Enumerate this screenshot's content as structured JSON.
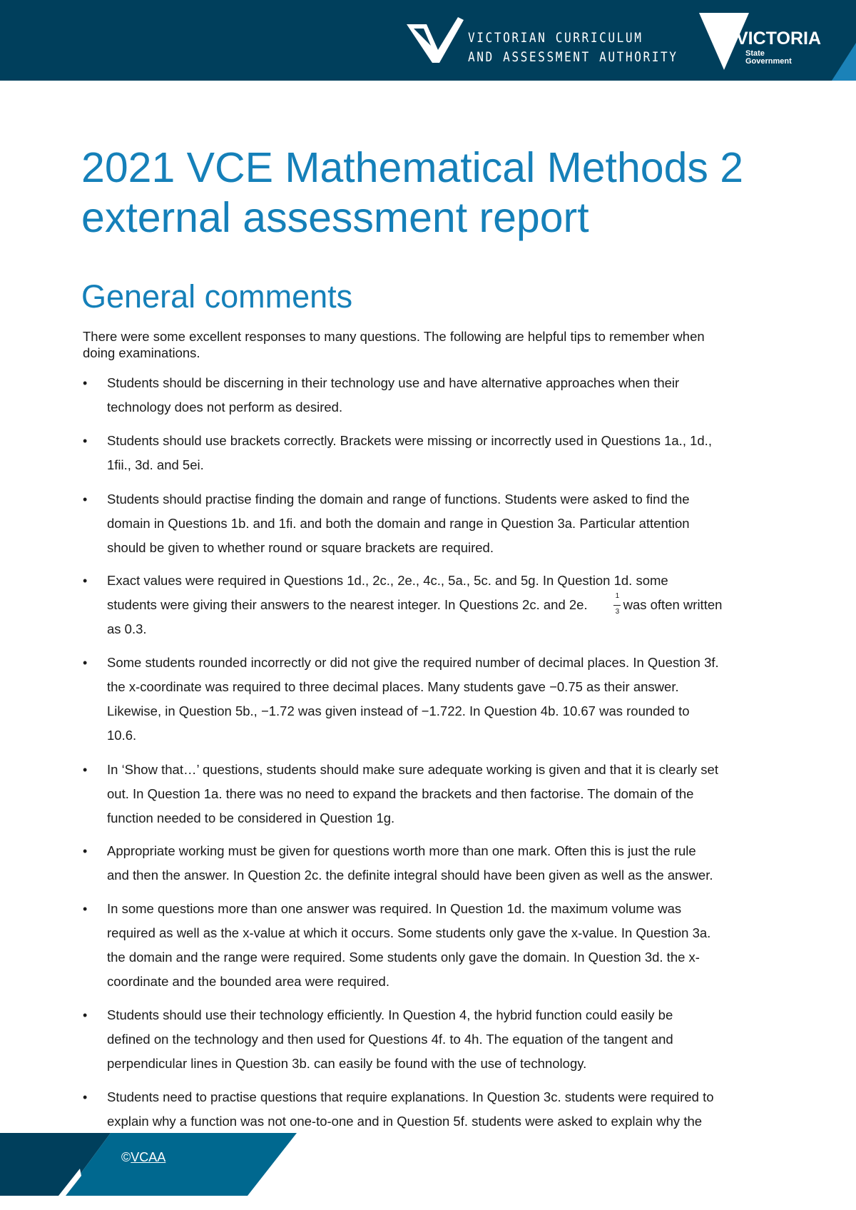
{
  "header": {
    "org_name_line1": "VICTORIAN CURRICULUM",
    "org_name_line2": "AND ASSESSMENT AUTHORITY",
    "gov_logo_word": "VICTORIA",
    "gov_logo_sub1": "State",
    "gov_logo_sub2": "Government",
    "colors": {
      "navy": "#003f5c",
      "accent": "#1b82b8"
    }
  },
  "title_line1": "2021 VCE Mathematical Methods 2",
  "title_line2": "external assessment report",
  "section_heading": "General comments",
  "intro_line1": "There were some excellent responses to many questions. The following are helpful tips to remember when",
  "intro_line2": "doing examinations.",
  "bullets": [
    {
      "lines": [
        "Students should be discerning in their technology use and have alternative approaches when their",
        "technology does not perform as desired."
      ]
    },
    {
      "lines": [
        "Students should use brackets correctly. Brackets were missing or incorrectly used in Questions 1a., 1d.,",
        "1fii., 3d. and 5ei."
      ]
    },
    {
      "lines": [
        "Students should practise finding the domain and range of functions. Students were asked to find the",
        "domain in Questions 1b. and 1fi. and both the domain and range in Question 3a. Particular attention",
        "should be given to whether round or square brackets are required."
      ]
    },
    {
      "lines": [
        "Exact values were required in Questions 1d., 2c., 2e., 4c., 5a., 5c. and 5g. In Question 1d. some",
        "students were giving their answers to the nearest integer. In Questions 2c. and 2e.",
        "as 0.3."
      ],
      "fraction_numerator": "1",
      "fraction_denominator": "3",
      "after_fraction": "was often written"
    },
    {
      "lines": [
        "Some students rounded incorrectly or did not give the required number of decimal places. In Question 3f.",
        "the x-coordinate was required to three decimal places. Many students gave −0.75 as their answer.",
        "Likewise, in Question 5b., −1.72 was given instead of −1.722. In Question 4b. 10.67 was rounded to",
        "10.6."
      ]
    },
    {
      "lines": [
        "In ‘Show that…’ questions, students should make sure adequate working is given and that it is clearly set",
        "out. In Question 1a. there was no need to expand the brackets and then factorise. The domain of the",
        "function needed to be considered in Question 1g."
      ]
    },
    {
      "lines": [
        "Appropriate working must be given for questions worth more than one mark. Often this is just the rule",
        "and then the answer. In Question 2c. the definite integral should have been given as well as the answer."
      ]
    },
    {
      "lines": [
        "In some questions more than one answer was required. In Question 1d. the maximum volume was",
        "required as well as the x-value at which it occurs. Some students only gave the x-value. In Question 3a.",
        "the domain and the range were required. Some students only gave the domain. In Question 3d. the x-",
        "coordinate and the bounded area were required."
      ]
    },
    {
      "lines": [
        "Students should use their technology efficiently. In Question 4, the hybrid function could easily be",
        "defined on the technology and then used for Questions 4f. to 4h. The equation of the tangent and",
        "perpendicular lines in Question 3b. can easily be found with the use of technology."
      ]
    },
    {
      "lines": [
        "Students need to practise questions that require explanations. In Question 3c. students were required to",
        "explain why a function was not one-to-one and in Question 5f. students were asked to explain why the"
      ]
    }
  ],
  "footer": {
    "copyright_symbol": "©",
    "copyright_link": "VCAA"
  }
}
